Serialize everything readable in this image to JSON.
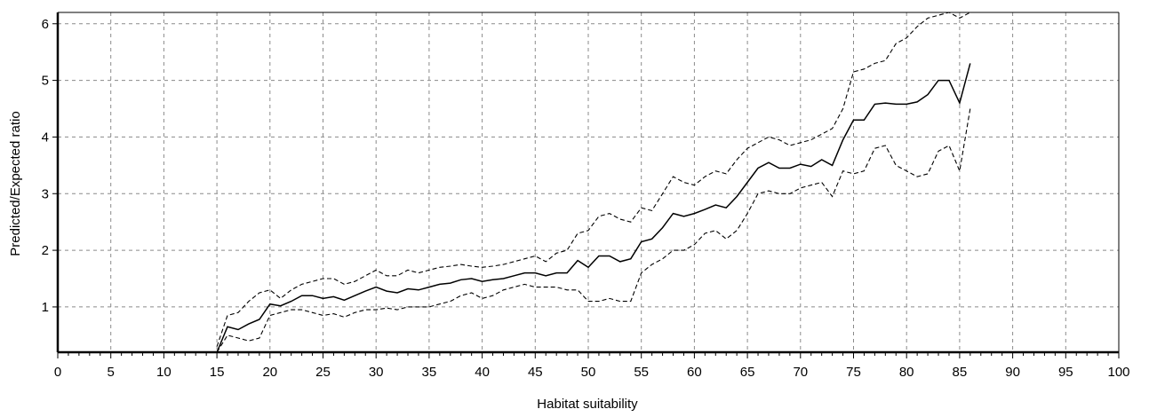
{
  "chart_data": {
    "type": "line",
    "xlabel": "Habitat suitability",
    "ylabel": "Predicted/Expected ratio",
    "xlim": [
      0,
      100
    ],
    "ylim": [
      0.2,
      6.2
    ],
    "x_ticks": [
      0,
      5,
      10,
      15,
      20,
      25,
      30,
      35,
      40,
      45,
      50,
      55,
      60,
      65,
      70,
      75,
      80,
      85,
      90,
      95,
      100
    ],
    "y_ticks": [
      1,
      2,
      3,
      4,
      5,
      6
    ],
    "grid": true,
    "series": [
      {
        "style": "solid",
        "x": [
          15,
          16,
          17,
          18,
          19,
          20,
          21,
          22,
          23,
          24,
          25,
          26,
          27,
          28,
          29,
          30,
          31,
          32,
          33,
          34,
          35,
          36,
          37,
          38,
          39,
          40,
          41,
          42,
          43,
          44,
          45,
          46,
          47,
          48,
          49,
          50,
          51,
          52,
          53,
          54,
          55,
          56,
          57,
          58,
          59,
          60,
          61,
          62,
          63,
          64,
          65,
          66,
          67,
          68,
          69,
          70,
          71,
          72,
          73,
          74,
          75,
          76,
          77,
          78,
          79,
          80,
          81,
          82,
          83,
          84,
          85,
          86
        ],
        "y": [
          0.2,
          0.65,
          0.6,
          0.7,
          0.78,
          1.05,
          1.02,
          1.1,
          1.2,
          1.2,
          1.15,
          1.18,
          1.12,
          1.2,
          1.28,
          1.35,
          1.28,
          1.25,
          1.32,
          1.3,
          1.35,
          1.4,
          1.42,
          1.48,
          1.5,
          1.45,
          1.48,
          1.5,
          1.55,
          1.6,
          1.6,
          1.55,
          1.6,
          1.6,
          1.82,
          1.7,
          1.9,
          1.9,
          1.8,
          1.85,
          2.15,
          2.2,
          2.4,
          2.65,
          2.6,
          2.65,
          2.72,
          2.8,
          2.75,
          2.95,
          3.2,
          3.45,
          3.55,
          3.45,
          3.45,
          3.52,
          3.48,
          3.6,
          3.5,
          3.95,
          4.3,
          4.3,
          4.58,
          4.6,
          4.58,
          4.58,
          4.62,
          4.75,
          5.0,
          5.0,
          4.6,
          5.3
        ]
      },
      {
        "style": "dashed",
        "x": [
          15,
          16,
          17,
          18,
          19,
          20,
          21,
          22,
          23,
          24,
          25,
          26,
          27,
          28,
          29,
          30,
          31,
          32,
          33,
          34,
          35,
          36,
          37,
          38,
          39,
          40,
          41,
          42,
          43,
          44,
          45,
          46,
          47,
          48,
          49,
          50,
          51,
          52,
          53,
          54,
          55,
          56,
          57,
          58,
          59,
          60,
          61,
          62,
          63,
          64,
          65,
          66,
          67,
          68,
          69,
          70,
          71,
          72,
          73,
          74,
          75,
          76,
          77,
          78,
          79,
          80,
          81,
          82,
          83,
          84,
          85,
          86
        ],
        "y": [
          0.3,
          0.85,
          0.9,
          1.1,
          1.25,
          1.3,
          1.15,
          1.3,
          1.4,
          1.45,
          1.5,
          1.5,
          1.4,
          1.45,
          1.55,
          1.65,
          1.55,
          1.55,
          1.65,
          1.6,
          1.65,
          1.7,
          1.72,
          1.75,
          1.72,
          1.7,
          1.72,
          1.75,
          1.8,
          1.85,
          1.9,
          1.8,
          1.95,
          2.0,
          2.3,
          2.35,
          2.6,
          2.65,
          2.55,
          2.5,
          2.75,
          2.7,
          3.0,
          3.3,
          3.2,
          3.15,
          3.3,
          3.4,
          3.35,
          3.6,
          3.8,
          3.9,
          4.0,
          3.95,
          3.85,
          3.9,
          3.95,
          4.05,
          4.15,
          4.5,
          5.15,
          5.2,
          5.3,
          5.35,
          5.65,
          5.75,
          5.95,
          6.1,
          6.15,
          6.2,
          6.1,
          6.3
        ]
      },
      {
        "style": "dashed",
        "x": [
          15,
          16,
          17,
          18,
          19,
          20,
          21,
          22,
          23,
          24,
          25,
          26,
          27,
          28,
          29,
          30,
          31,
          32,
          33,
          34,
          35,
          36,
          37,
          38,
          39,
          40,
          41,
          42,
          43,
          44,
          45,
          46,
          47,
          48,
          49,
          50,
          51,
          52,
          53,
          54,
          55,
          56,
          57,
          58,
          59,
          60,
          61,
          62,
          63,
          64,
          65,
          66,
          67,
          68,
          69,
          70,
          71,
          72,
          73,
          74,
          75,
          76,
          77,
          78,
          79,
          80,
          81,
          82,
          83,
          84,
          85,
          86
        ],
        "y": [
          0.2,
          0.5,
          0.45,
          0.4,
          0.45,
          0.85,
          0.9,
          0.95,
          0.95,
          0.9,
          0.85,
          0.88,
          0.82,
          0.9,
          0.95,
          0.95,
          0.98,
          0.95,
          1.0,
          1.0,
          1.0,
          1.05,
          1.1,
          1.2,
          1.25,
          1.15,
          1.2,
          1.3,
          1.35,
          1.4,
          1.35,
          1.35,
          1.35,
          1.3,
          1.3,
          1.1,
          1.1,
          1.15,
          1.1,
          1.1,
          1.6,
          1.75,
          1.85,
          2.0,
          2.0,
          2.1,
          2.3,
          2.35,
          2.2,
          2.35,
          2.65,
          3.0,
          3.05,
          3.0,
          3.0,
          3.1,
          3.15,
          3.2,
          2.95,
          3.4,
          3.35,
          3.4,
          3.8,
          3.85,
          3.5,
          3.4,
          3.3,
          3.35,
          3.75,
          3.85,
          3.4,
          4.5
        ]
      }
    ]
  }
}
